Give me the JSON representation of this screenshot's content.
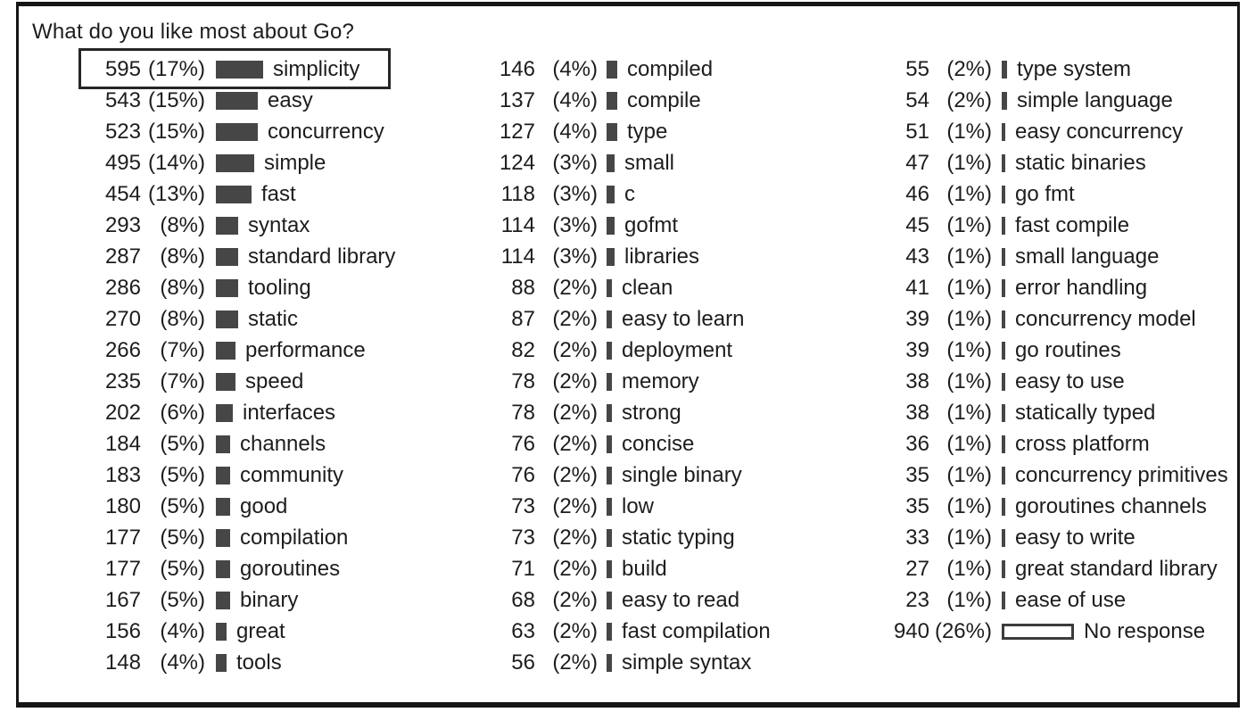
{
  "title": "What do you like most about Go?",
  "colors": {
    "bar_fill": "#464646",
    "text": "#1d1d1d",
    "frame_border": "#151515",
    "background": "#ffffff",
    "highlight_border": "#262626"
  },
  "chart_data": {
    "type": "bar",
    "title": "What do you like most about Go?",
    "orientation": "horizontal",
    "value_format": "count (percent)",
    "highlighted_label": "simplicity",
    "columns": [
      {
        "rows": [
          {
            "count": "595",
            "pct_label": "(17%)",
            "pct": 17,
            "label": "simplicity",
            "highlight": true
          },
          {
            "count": "543",
            "pct_label": "(15%)",
            "pct": 15,
            "label": "easy"
          },
          {
            "count": "523",
            "pct_label": "(15%)",
            "pct": 15,
            "label": "concurrency"
          },
          {
            "count": "495",
            "pct_label": "(14%)",
            "pct": 14,
            "label": "simple"
          },
          {
            "count": "454",
            "pct_label": "(13%)",
            "pct": 13,
            "label": "fast"
          },
          {
            "count": "293",
            "pct_label": "(8%)",
            "pct": 8,
            "label": "syntax"
          },
          {
            "count": "287",
            "pct_label": "(8%)",
            "pct": 8,
            "label": "standard library"
          },
          {
            "count": "286",
            "pct_label": "(8%)",
            "pct": 8,
            "label": "tooling"
          },
          {
            "count": "270",
            "pct_label": "(8%)",
            "pct": 8,
            "label": "static"
          },
          {
            "count": "266",
            "pct_label": "(7%)",
            "pct": 7,
            "label": "performance"
          },
          {
            "count": "235",
            "pct_label": "(7%)",
            "pct": 7,
            "label": "speed"
          },
          {
            "count": "202",
            "pct_label": "(6%)",
            "pct": 6,
            "label": "interfaces"
          },
          {
            "count": "184",
            "pct_label": "(5%)",
            "pct": 5,
            "label": "channels"
          },
          {
            "count": "183",
            "pct_label": "(5%)",
            "pct": 5,
            "label": "community"
          },
          {
            "count": "180",
            "pct_label": "(5%)",
            "pct": 5,
            "label": "good"
          },
          {
            "count": "177",
            "pct_label": "(5%)",
            "pct": 5,
            "label": "compilation"
          },
          {
            "count": "177",
            "pct_label": "(5%)",
            "pct": 5,
            "label": "goroutines"
          },
          {
            "count": "167",
            "pct_label": "(5%)",
            "pct": 5,
            "label": "binary"
          },
          {
            "count": "156",
            "pct_label": "(4%)",
            "pct": 4,
            "label": "great"
          },
          {
            "count": "148",
            "pct_label": "(4%)",
            "pct": 4,
            "label": "tools"
          }
        ]
      },
      {
        "rows": [
          {
            "count": "146",
            "pct_label": "(4%)",
            "pct": 4,
            "label": "compiled"
          },
          {
            "count": "137",
            "pct_label": "(4%)",
            "pct": 4,
            "label": "compile"
          },
          {
            "count": "127",
            "pct_label": "(4%)",
            "pct": 4,
            "label": "type"
          },
          {
            "count": "124",
            "pct_label": "(3%)",
            "pct": 3,
            "label": "small"
          },
          {
            "count": "118",
            "pct_label": "(3%)",
            "pct": 3,
            "label": "c"
          },
          {
            "count": "114",
            "pct_label": "(3%)",
            "pct": 3,
            "label": "gofmt"
          },
          {
            "count": "114",
            "pct_label": "(3%)",
            "pct": 3,
            "label": "libraries"
          },
          {
            "count": "88",
            "pct_label": "(2%)",
            "pct": 2,
            "label": "clean"
          },
          {
            "count": "87",
            "pct_label": "(2%)",
            "pct": 2,
            "label": "easy to learn"
          },
          {
            "count": "82",
            "pct_label": "(2%)",
            "pct": 2,
            "label": "deployment"
          },
          {
            "count": "78",
            "pct_label": "(2%)",
            "pct": 2,
            "label": "memory"
          },
          {
            "count": "78",
            "pct_label": "(2%)",
            "pct": 2,
            "label": "strong"
          },
          {
            "count": "76",
            "pct_label": "(2%)",
            "pct": 2,
            "label": "concise"
          },
          {
            "count": "76",
            "pct_label": "(2%)",
            "pct": 2,
            "label": "single binary"
          },
          {
            "count": "73",
            "pct_label": "(2%)",
            "pct": 2,
            "label": "low"
          },
          {
            "count": "73",
            "pct_label": "(2%)",
            "pct": 2,
            "label": "static typing"
          },
          {
            "count": "71",
            "pct_label": "(2%)",
            "pct": 2,
            "label": "build"
          },
          {
            "count": "68",
            "pct_label": "(2%)",
            "pct": 2,
            "label": "easy to read"
          },
          {
            "count": "63",
            "pct_label": "(2%)",
            "pct": 2,
            "label": "fast compilation"
          },
          {
            "count": "56",
            "pct_label": "(2%)",
            "pct": 2,
            "label": "simple syntax"
          }
        ]
      },
      {
        "rows": [
          {
            "count": "55",
            "pct_label": "(2%)",
            "pct": 2,
            "label": "type system"
          },
          {
            "count": "54",
            "pct_label": "(2%)",
            "pct": 2,
            "label": "simple language"
          },
          {
            "count": "51",
            "pct_label": "(1%)",
            "pct": 1,
            "label": "easy concurrency"
          },
          {
            "count": "47",
            "pct_label": "(1%)",
            "pct": 1,
            "label": "static binaries"
          },
          {
            "count": "46",
            "pct_label": "(1%)",
            "pct": 1,
            "label": "go fmt"
          },
          {
            "count": "45",
            "pct_label": "(1%)",
            "pct": 1,
            "label": "fast compile"
          },
          {
            "count": "43",
            "pct_label": "(1%)",
            "pct": 1,
            "label": "small language"
          },
          {
            "count": "41",
            "pct_label": "(1%)",
            "pct": 1,
            "label": "error handling"
          },
          {
            "count": "39",
            "pct_label": "(1%)",
            "pct": 1,
            "label": "concurrency model"
          },
          {
            "count": "39",
            "pct_label": "(1%)",
            "pct": 1,
            "label": "go routines"
          },
          {
            "count": "38",
            "pct_label": "(1%)",
            "pct": 1,
            "label": "easy to use"
          },
          {
            "count": "38",
            "pct_label": "(1%)",
            "pct": 1,
            "label": "statically typed"
          },
          {
            "count": "36",
            "pct_label": "(1%)",
            "pct": 1,
            "label": "cross platform"
          },
          {
            "count": "35",
            "pct_label": "(1%)",
            "pct": 1,
            "label": "concurrency primitives"
          },
          {
            "count": "35",
            "pct_label": "(1%)",
            "pct": 1,
            "label": "goroutines channels"
          },
          {
            "count": "33",
            "pct_label": "(1%)",
            "pct": 1,
            "label": "easy to write"
          },
          {
            "count": "27",
            "pct_label": "(1%)",
            "pct": 1,
            "label": "great standard library"
          },
          {
            "count": "23",
            "pct_label": "(1%)",
            "pct": 1,
            "label": "ease of use"
          },
          {
            "count": "940",
            "pct_label": "(26%)",
            "pct": 26,
            "label": "No response",
            "outlined": true
          }
        ]
      }
    ]
  }
}
